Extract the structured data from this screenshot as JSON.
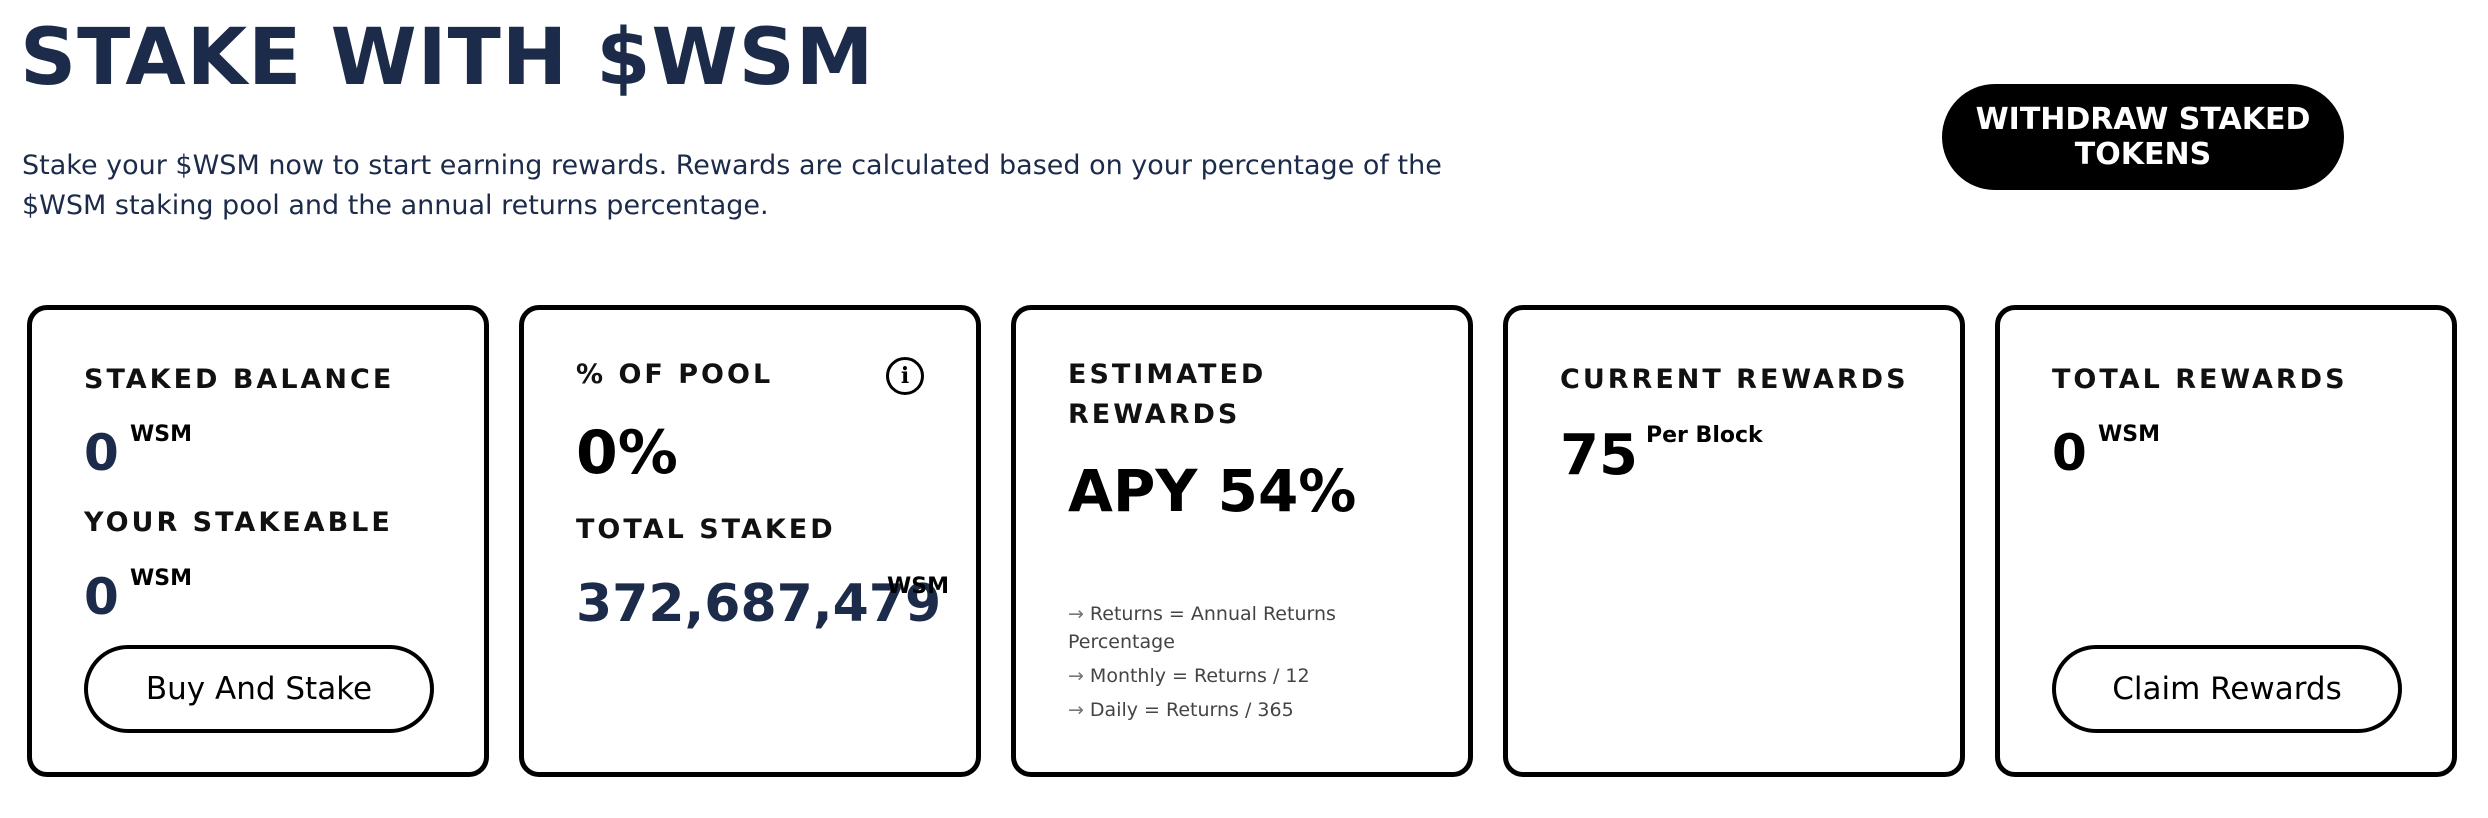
{
  "header": {
    "title": "STAKE WITH $WSM",
    "description": "Stake your $WSM now to start earning rewards. Rewards are calculated based on your percentage of the $WSM staking pool and the annual returns percentage.",
    "withdraw_label": "WITHDRAW STAKED TOKENS"
  },
  "cards": {
    "staked": {
      "label": "STAKED BALANCE",
      "value": "0",
      "unit": "WSM",
      "stakeable_label": "YOUR STAKEABLE",
      "stakeable_value": "0",
      "stakeable_unit": "WSM",
      "button_label": "Buy And Stake"
    },
    "pool": {
      "label": "% OF POOL",
      "value": "0%",
      "info_icon": "i",
      "total_label": "TOTAL STAKED",
      "total_value": "372,687,479",
      "total_unit": "WSM"
    },
    "estimated": {
      "label": "ESTIMATED REWARDS",
      "apy": "APY 54%",
      "arrow": "→",
      "formulas": [
        "Returns = Annual Returns Percentage",
        "Monthly = Returns / 12",
        "Daily = Returns / 365"
      ]
    },
    "current": {
      "label": "CURRENT REWARDS",
      "value": "75",
      "unit": "Per Block"
    },
    "total": {
      "label": "TOTAL REWARDS",
      "value": "0",
      "unit": "WSM",
      "button_label": "Claim Rewards"
    }
  }
}
